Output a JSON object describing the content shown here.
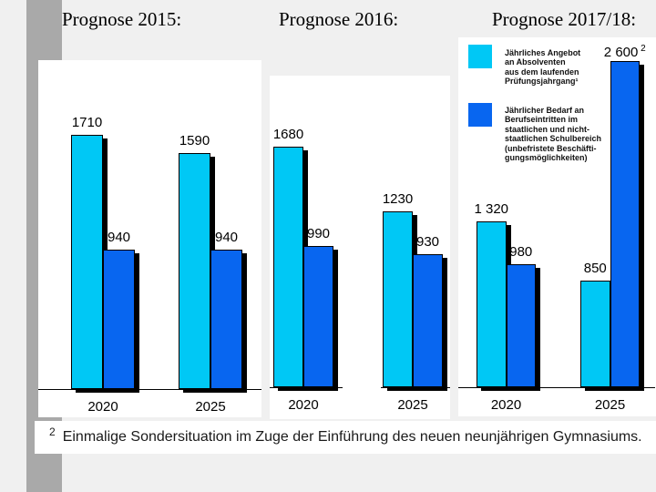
{
  "page": {
    "background_color": "#F0F0F0",
    "accent_bar_color": "#A9A9A9"
  },
  "legend": {
    "supply": {
      "color": "#00C8F5",
      "lines": [
        "Jährliches Angebot",
        "an Absolventen",
        "aus dem laufenden",
        "Prüfungsjahrgang¹"
      ]
    },
    "demand": {
      "color": "#0866F0",
      "lines": [
        "Jährlicher Bedarf an",
        "Berufseintritten im",
        "staatlichen und nicht-",
        "staatlichen Schulbereich",
        "(unbefristete Beschäfti-",
        "gungsmöglichkeiten)"
      ]
    }
  },
  "footnote": {
    "sup": "2",
    "text": "Einmalige Sondersituation im Zuge der Einführung des neuen neunjährigen Gymnasiums."
  },
  "chart_data": [
    {
      "type": "bar",
      "title": "Prognose 2015:",
      "categories": [
        "2020",
        "2025"
      ],
      "series": [
        {
          "name": "Jährliches Angebot an Absolventen aus dem laufenden Prüfungsjahrgang",
          "color": "#00C8F5",
          "values": [
            1710,
            1590
          ],
          "labels": [
            "1710",
            "1590"
          ]
        },
        {
          "name": "Jährlicher Bedarf an Berufseintritten im staatlichen und nicht-staatlichen Schulbereich (unbefristete Beschäftigungsmöglichkeiten)",
          "color": "#0866F0",
          "values": [
            940,
            940
          ],
          "labels": [
            "940",
            "940"
          ]
        }
      ],
      "ylim": [
        0,
        2215
      ],
      "grid": false,
      "legend_position": "none"
    },
    {
      "type": "bar",
      "title": "Prognose 2016:",
      "categories": [
        "2020",
        "2025"
      ],
      "series": [
        {
          "name": "Jährliches Angebot an Absolventen aus dem laufenden Prüfungsjahrgang",
          "color": "#00C8F5",
          "values": [
            1680,
            1230
          ],
          "labels": [
            "1680",
            "1230"
          ]
        },
        {
          "name": "Jährlicher Bedarf an Berufseintritten im staatlichen und nicht-staatlichen Schulbereich (unbefristete Beschäftigungsmöglichkeiten)",
          "color": "#0866F0",
          "values": [
            990,
            930
          ],
          "labels": [
            "990",
            "930"
          ]
        }
      ],
      "ylim": [
        0,
        2180
      ],
      "grid": false,
      "legend_position": "none"
    },
    {
      "type": "bar",
      "title": "Prognose 2017/18:",
      "categories": [
        "2020",
        "2025"
      ],
      "series": [
        {
          "name": "Jährliches Angebot an Absolventen aus dem laufenden Prüfungsjahrgang",
          "color": "#00C8F5",
          "values": [
            1320,
            850
          ],
          "labels": [
            "1 320",
            "850"
          ]
        },
        {
          "name": "Jährlicher Bedarf an Berufseintritten im staatlichen und nicht-staatlichen Schulbereich (unbefristete Beschäftigungsmöglichkeiten)",
          "color": "#0866F0",
          "values": [
            980,
            2600
          ],
          "labels": [
            "980",
            "2 600"
          ],
          "label_sups": [
            "",
            "2"
          ]
        }
      ],
      "ylim": [
        0,
        2790
      ],
      "grid": false,
      "legend_position": "top-left"
    }
  ]
}
